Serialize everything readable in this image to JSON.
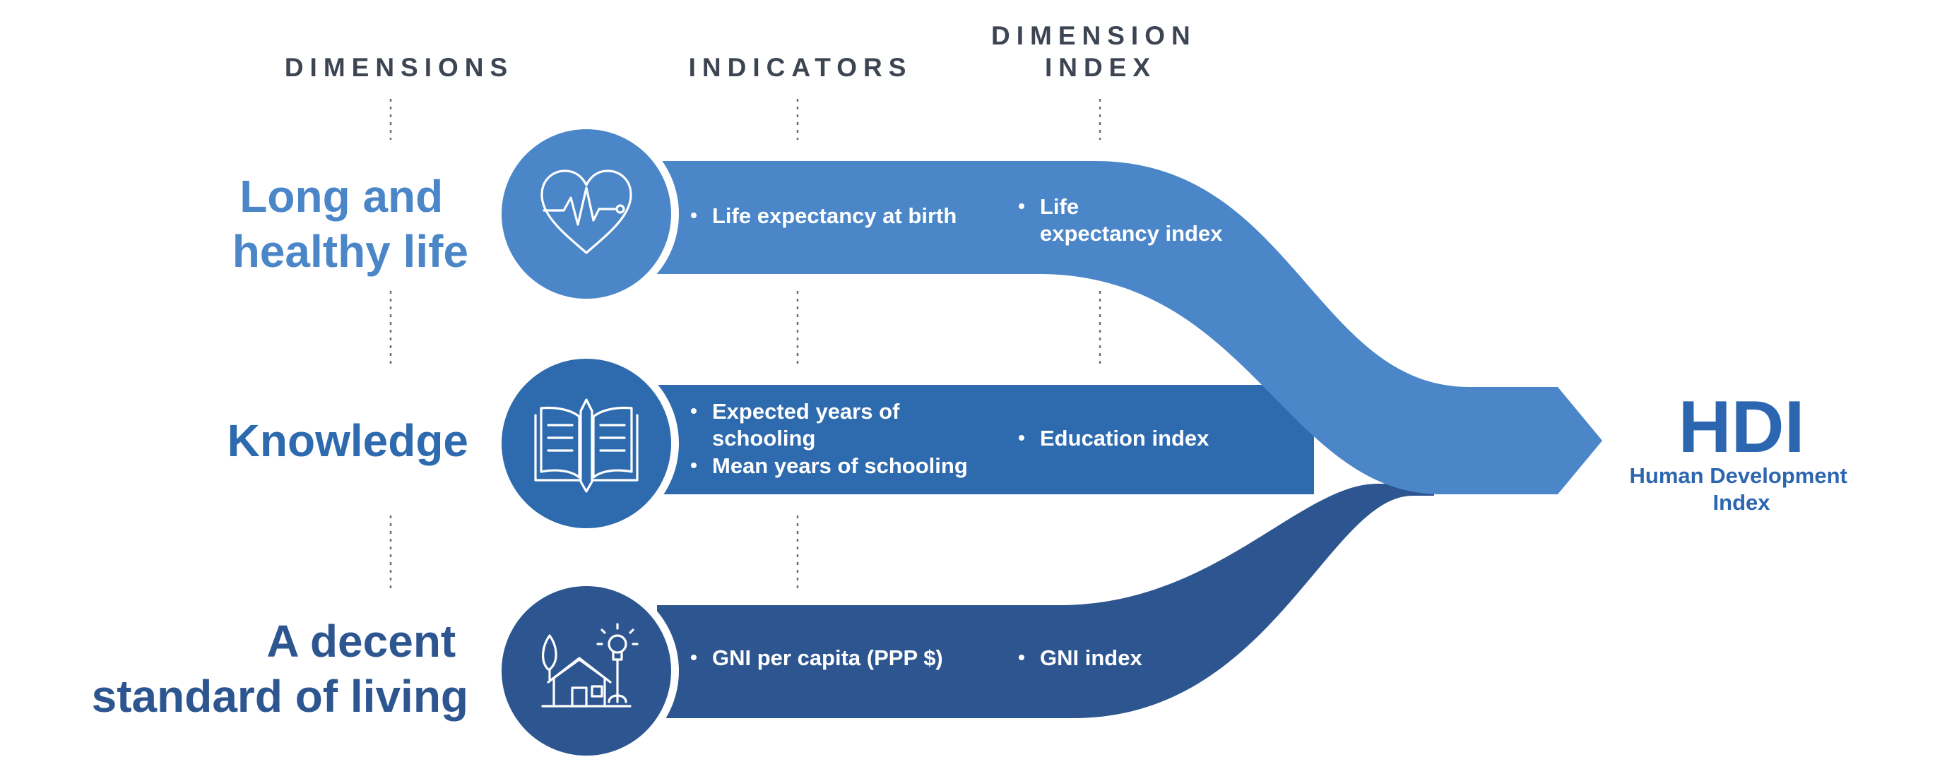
{
  "headers": {
    "dimensions": "DIMENSIONS",
    "indicators": "INDICATORS",
    "dimension_index_line1": "DIMENSION",
    "dimension_index_line2": "INDEX"
  },
  "rows": [
    {
      "dimension_lines": [
        "Long and",
        "healthy life"
      ],
      "icon": "heart-pulse-icon",
      "indicators": [
        "Life expectancy at birth"
      ],
      "index_lines": [
        "Life",
        "expectancy index"
      ]
    },
    {
      "dimension_lines": [
        "Knowledge"
      ],
      "icon": "book-pencil-icon",
      "indicators": [
        "Expected years of",
        "schooling",
        "Mean years of schooling"
      ],
      "index_lines": [
        "Education index"
      ]
    },
    {
      "dimension_lines": [
        "A decent",
        "standard of living"
      ],
      "icon": "house-tree-bulb-icon",
      "indicators": [
        "GNI per capita (PPP $)"
      ],
      "index_lines": [
        "GNI index"
      ]
    }
  ],
  "result": {
    "abbr": "HDI",
    "name_line1": "Human Development",
    "name_line2": "Index"
  },
  "colors": {
    "health": "#4a86c8",
    "knowledge": "#2e6aae",
    "living": "#2d5590",
    "hdi_text": "#2c66b0",
    "header_text": "#3d4553"
  }
}
